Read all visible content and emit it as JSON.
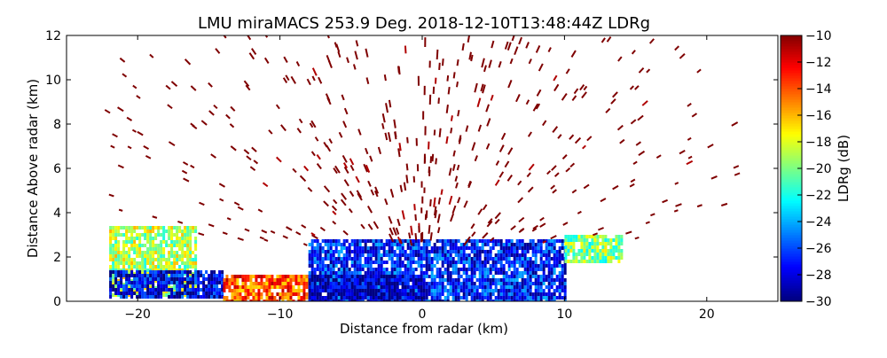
{
  "chart_data": {
    "type": "heatmap",
    "title": "LMU miraMACS 253.9 Deg. 2018-12-10T13:48:44Z  LDRg",
    "xlabel": "Distance from radar (km)",
    "ylabel": "Distance Above radar  (km)",
    "xlim": [
      -25,
      25
    ],
    "ylim": [
      0,
      12
    ],
    "xticks": [
      -20,
      -10,
      0,
      10,
      20
    ],
    "xtick_labels": [
      "−20",
      "−10",
      "0",
      "10",
      "20"
    ],
    "yticks": [
      0,
      2,
      4,
      6,
      8,
      10,
      12
    ],
    "ytick_labels": [
      "0",
      "2",
      "4",
      "6",
      "8",
      "10",
      "12"
    ],
    "grid": false,
    "colorbar": {
      "label": "LDRg (dB)",
      "range": [
        -30,
        -10
      ],
      "ticks": [
        -30,
        -28,
        -26,
        -24,
        -22,
        -20,
        -18,
        -16,
        -14,
        -12,
        -10
      ],
      "tick_labels": [
        "−30",
        "−28",
        "−26",
        "−24",
        "−22",
        "−20",
        "−18",
        "−16",
        "−14",
        "−12",
        "−10"
      ],
      "colormap": "jet"
    },
    "regions": [
      {
        "x_range": [
          -22,
          -16
        ],
        "y_range": [
          0.2,
          3.4
        ],
        "ldr_dB": -19
      },
      {
        "x_range": [
          -22,
          -14
        ],
        "y_range": [
          0.2,
          1.4
        ],
        "ldr_dB": -28
      },
      {
        "x_range": [
          -14,
          -8
        ],
        "y_range": [
          0,
          1.2
        ],
        "ldr_dB": -14
      },
      {
        "x_range": [
          -8,
          10
        ],
        "y_range": [
          0,
          2.8
        ],
        "ldr_dB": -27
      },
      {
        "x_range": [
          -8,
          0
        ],
        "y_range": [
          0,
          1.2
        ],
        "ldr_dB": -29
      },
      {
        "x_range": [
          10,
          14
        ],
        "y_range": [
          1.8,
          3.0
        ],
        "ldr_dB": -20
      },
      {
        "x_range": [
          -22,
          22
        ],
        "y_range": [
          2.5,
          12
        ],
        "ldr_dB": -10
      }
    ]
  }
}
